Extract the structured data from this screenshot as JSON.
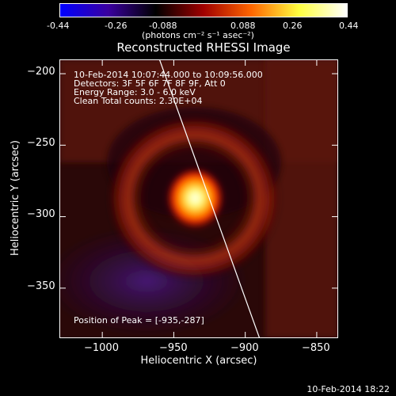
{
  "colorbar": {
    "ticks": [
      "-0.44",
      "-0.26",
      "-0.088",
      "0.088",
      "0.26",
      "0.44"
    ],
    "unit": "(photons cm⁻² s⁻¹ asec⁻²)",
    "colors": [
      "#0000ff",
      "#3a00a0",
      "#000000",
      "#a00000",
      "#ff6600",
      "#ffff40",
      "#ffffff"
    ]
  },
  "info": {
    "time": "10-Feb-2014 10:07:44.000 to 10:09:56.000",
    "detectors": "Detectors: 3F 5F 6F 7F 8F 9F, Att 0",
    "energy": "Energy Range: 3.0 - 6.0 keV",
    "clean": "Clean    Total counts: 2.30E+04",
    "peak": "Position of Peak = [-935,-287]"
  },
  "footer": {
    "timestamp": "10-Feb-2014 18:22"
  },
  "chart_data": {
    "type": "heatmap",
    "title": "Reconstructed RHESSI Image",
    "xlabel": "Heliocentric X (arcsec)",
    "ylabel": "Heliocentric Y (arcsec)",
    "xlim": [
      -1030,
      -835
    ],
    "ylim": [
      -385,
      -190
    ],
    "xticks": [
      -1000,
      -950,
      -900,
      -850
    ],
    "yticks": [
      -200,
      -250,
      -300,
      -350
    ],
    "xtick_labels": [
      "−1000",
      "−950",
      "−900",
      "−850"
    ],
    "ytick_labels": [
      "−200",
      "−250",
      "−300",
      "−350"
    ],
    "peak": {
      "x": -935,
      "y": -287
    },
    "limb_line": [
      [
        -960,
        -190
      ],
      [
        -890,
        -385
      ]
    ],
    "colormap": [
      "#0000ff",
      "#000000",
      "#ff0000",
      "#ffff00",
      "#ffffff"
    ]
  }
}
